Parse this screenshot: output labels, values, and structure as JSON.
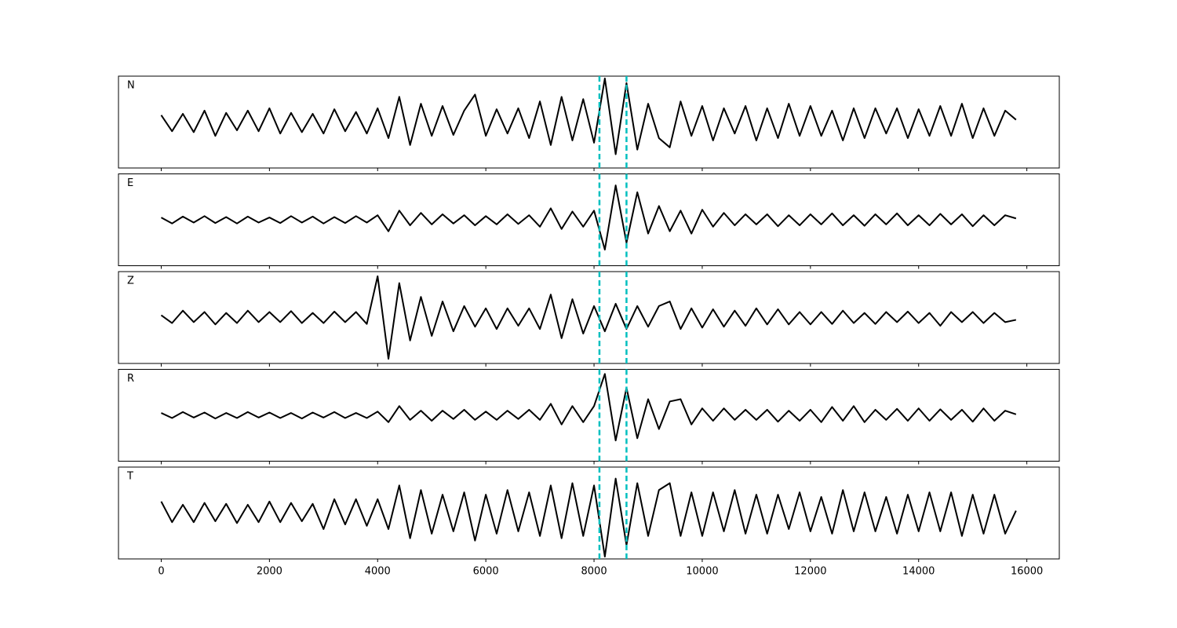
{
  "chart_data": {
    "type": "line",
    "x": [
      0,
      200,
      400,
      600,
      800,
      1000,
      1200,
      1400,
      1600,
      1800,
      2000,
      2200,
      2400,
      2600,
      2800,
      3000,
      3200,
      3400,
      3600,
      3800,
      4000,
      4200,
      4400,
      4600,
      4800,
      5000,
      5200,
      5400,
      5600,
      5800,
      6000,
      6200,
      6400,
      6600,
      6800,
      7000,
      7200,
      7400,
      7600,
      7800,
      8000,
      8200,
      8400,
      8600,
      8800,
      9000,
      9200,
      9400,
      9600,
      9800,
      10000,
      10200,
      10400,
      10600,
      10800,
      11000,
      11200,
      11400,
      11600,
      11800,
      12000,
      12200,
      12400,
      12600,
      12800,
      13000,
      13200,
      13400,
      13600,
      13800,
      14000,
      14200,
      14400,
      14600,
      14800,
      15000,
      15200,
      15400,
      15600,
      15800
    ],
    "xlim": [
      -790,
      16600
    ],
    "xticks": [
      0,
      2000,
      4000,
      6000,
      8000,
      10000,
      12000,
      14000,
      16000
    ],
    "vlines": {
      "values": [
        8100,
        8600
      ],
      "color": "#00bfbf"
    },
    "series": [
      {
        "name": "N",
        "color": "#000000",
        "ylim": [
          -1,
          1
        ],
        "values": [
          0.15,
          -0.2,
          0.18,
          -0.22,
          0.25,
          -0.3,
          0.2,
          -0.18,
          0.25,
          -0.2,
          0.3,
          -0.25,
          0.2,
          -0.22,
          0.18,
          -0.25,
          0.28,
          -0.2,
          0.22,
          -0.25,
          0.3,
          -0.35,
          0.55,
          -0.5,
          0.4,
          -0.3,
          0.35,
          -0.28,
          0.25,
          0.6,
          -0.3,
          0.28,
          -0.25,
          0.3,
          -0.35,
          0.45,
          -0.5,
          0.55,
          -0.4,
          0.5,
          -0.45,
          0.95,
          -0.7,
          0.85,
          -0.6,
          0.4,
          -0.35,
          -0.55,
          0.45,
          -0.3,
          0.35,
          -0.4,
          0.3,
          -0.25,
          0.35,
          -0.4,
          0.3,
          -0.35,
          0.4,
          -0.3,
          0.35,
          -0.3,
          0.25,
          -0.4,
          0.3,
          -0.35,
          0.3,
          -0.25,
          0.3,
          -0.35,
          0.28,
          -0.3,
          0.35,
          -0.3,
          0.4,
          -0.35,
          0.3,
          -0.3,
          0.25,
          0.05
        ]
      },
      {
        "name": "E",
        "color": "#000000",
        "ylim": [
          -1,
          1
        ],
        "values": [
          0.05,
          -0.08,
          0.07,
          -0.06,
          0.08,
          -0.07,
          0.06,
          -0.08,
          0.07,
          -0.06,
          0.05,
          -0.07,
          0.08,
          -0.06,
          0.07,
          -0.08,
          0.06,
          -0.07,
          0.08,
          -0.06,
          0.1,
          -0.25,
          0.2,
          -0.12,
          0.15,
          -0.1,
          0.12,
          -0.08,
          0.1,
          -0.12,
          0.08,
          -0.1,
          0.12,
          -0.09,
          0.1,
          -0.15,
          0.25,
          -0.2,
          0.18,
          -0.15,
          0.2,
          -0.65,
          0.75,
          -0.5,
          0.6,
          -0.3,
          0.3,
          -0.25,
          0.2,
          -0.3,
          0.22,
          -0.15,
          0.15,
          -0.12,
          0.12,
          -0.1,
          0.12,
          -0.14,
          0.1,
          -0.12,
          0.12,
          -0.1,
          0.14,
          -0.12,
          0.1,
          -0.13,
          0.12,
          -0.1,
          0.14,
          -0.12,
          0.1,
          -0.12,
          0.13,
          -0.1,
          0.12,
          -0.14,
          0.1,
          -0.12,
          0.1,
          0.03
        ]
      },
      {
        "name": "Z",
        "color": "#000000",
        "ylim": [
          -1,
          1
        ],
        "values": [
          0.05,
          -0.12,
          0.15,
          -0.1,
          0.12,
          -0.15,
          0.1,
          -0.12,
          0.15,
          -0.1,
          0.12,
          -0.1,
          0.14,
          -0.12,
          0.1,
          -0.12,
          0.13,
          -0.1,
          0.12,
          -0.14,
          0.9,
          -0.9,
          0.75,
          -0.5,
          0.45,
          -0.4,
          0.35,
          -0.3,
          0.25,
          -0.2,
          0.2,
          -0.25,
          0.2,
          -0.18,
          0.2,
          -0.25,
          0.5,
          -0.45,
          0.4,
          -0.35,
          0.25,
          -0.3,
          0.3,
          -0.25,
          0.25,
          -0.2,
          0.25,
          0.35,
          -0.25,
          0.2,
          -0.22,
          0.18,
          -0.2,
          0.15,
          -0.18,
          0.2,
          -0.15,
          0.18,
          -0.15,
          0.12,
          -0.15,
          0.12,
          -0.14,
          0.15,
          -0.12,
          0.1,
          -0.14,
          0.12,
          -0.1,
          0.13,
          -0.12,
          0.1,
          -0.18,
          0.12,
          -0.1,
          0.12,
          -0.12,
          0.1,
          -0.1,
          -0.05
        ]
      },
      {
        "name": "R",
        "color": "#000000",
        "ylim": [
          -1,
          1
        ],
        "values": [
          0.05,
          -0.06,
          0.07,
          -0.05,
          0.06,
          -0.07,
          0.05,
          -0.06,
          0.07,
          -0.05,
          0.06,
          -0.06,
          0.05,
          -0.07,
          0.06,
          -0.05,
          0.07,
          -0.06,
          0.05,
          -0.06,
          0.08,
          -0.15,
          0.2,
          -0.1,
          0.1,
          -0.12,
          0.1,
          -0.08,
          0.12,
          -0.1,
          0.08,
          -0.1,
          0.1,
          -0.08,
          0.12,
          -0.1,
          0.25,
          -0.2,
          0.2,
          -0.15,
          0.2,
          0.9,
          -0.55,
          0.6,
          -0.5,
          0.35,
          -0.3,
          0.3,
          0.35,
          -0.2,
          0.15,
          -0.12,
          0.15,
          -0.1,
          0.12,
          -0.1,
          0.12,
          -0.14,
          0.1,
          -0.12,
          0.12,
          -0.15,
          0.18,
          -0.12,
          0.2,
          -0.15,
          0.12,
          -0.1,
          0.14,
          -0.12,
          0.15,
          -0.12,
          0.13,
          -0.1,
          0.12,
          -0.14,
          0.15,
          -0.12,
          0.1,
          0.02
        ]
      },
      {
        "name": "T",
        "color": "#000000",
        "ylim": [
          -1,
          1
        ],
        "values": [
          0.25,
          -0.2,
          0.18,
          -0.2,
          0.22,
          -0.18,
          0.2,
          -0.22,
          0.18,
          -0.2,
          0.25,
          -0.2,
          0.22,
          -0.18,
          0.2,
          -0.35,
          0.3,
          -0.25,
          0.3,
          -0.28,
          0.3,
          -0.35,
          0.6,
          -0.55,
          0.5,
          -0.45,
          0.4,
          -0.4,
          0.45,
          -0.6,
          0.4,
          -0.45,
          0.5,
          -0.4,
          0.45,
          -0.5,
          0.6,
          -0.55,
          0.65,
          -0.5,
          0.6,
          -0.95,
          0.75,
          -0.7,
          0.65,
          -0.5,
          0.5,
          0.65,
          -0.5,
          0.45,
          -0.5,
          0.45,
          -0.4,
          0.5,
          -0.45,
          0.4,
          -0.45,
          0.4,
          -0.35,
          0.45,
          -0.4,
          0.35,
          -0.45,
          0.5,
          -0.4,
          0.45,
          -0.4,
          0.35,
          -0.45,
          0.4,
          -0.4,
          0.45,
          -0.4,
          0.45,
          -0.5,
          0.4,
          -0.45,
          0.4,
          -0.45,
          0.05
        ]
      }
    ]
  }
}
